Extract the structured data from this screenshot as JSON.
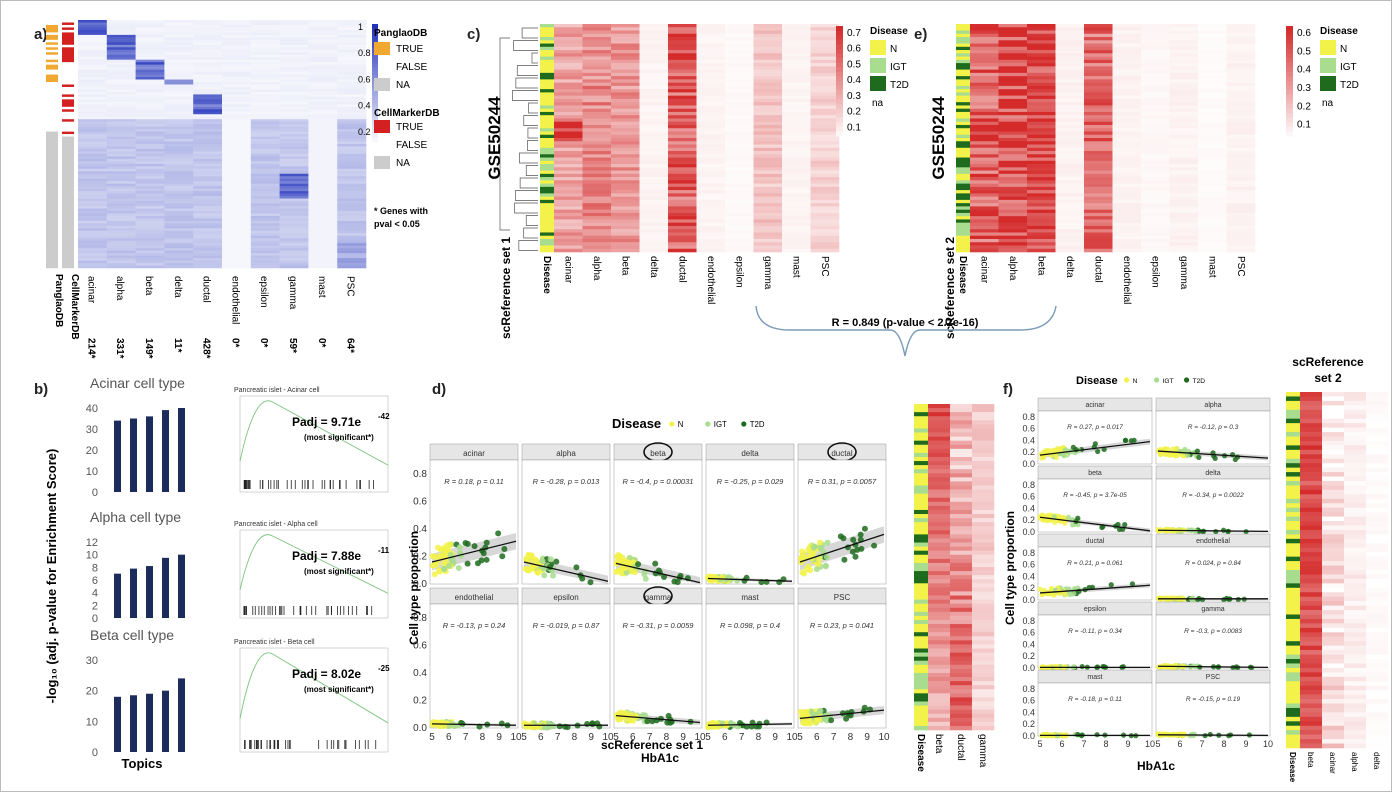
{
  "panels": {
    "a": {
      "label": "a)",
      "row_annots": [
        "PanglaoDB",
        "CellMarkerDB"
      ],
      "cell_types": [
        "acinar",
        "alpha",
        "beta",
        "delta",
        "ductal",
        "endothelial",
        "epsilon",
        "gamma",
        "mast",
        "PSC"
      ],
      "counts": [
        "214*",
        "331*",
        "149*",
        "11*",
        "428*",
        "0*",
        "0*",
        "59*",
        "0*",
        "64*"
      ],
      "colorbar_ticks": [
        "1",
        "0.8",
        "0.6",
        "0.4",
        "0.2"
      ],
      "legend_panglao_title": "PanglaoDB",
      "legend_cellmarker_title": "CellMarkerDB",
      "legend_true": "TRUE",
      "legend_false": "FALSE",
      "legend_na": "NA",
      "note_line1": "* Genes with",
      "note_line2": "pval < 0.05",
      "colors": {
        "heat": "#2233bb",
        "panglao": "#f0a830",
        "cellmarker": "#d42020",
        "na": "#cccccc"
      }
    },
    "b": {
      "label": "b)",
      "ylabel": "-log₁₀ (adj. p-value for Enrichment Score)",
      "xlabel": "Topics",
      "bar_color": "#1a2b5c",
      "groups": [
        {
          "title": "Acinar cell type",
          "ticks": [
            "40",
            "30",
            "20",
            "10",
            "0"
          ],
          "values": [
            34,
            35,
            36,
            39,
            40
          ],
          "ymax": 40,
          "gsea_title": "Pancreatic islet - Acinar cell",
          "padj_base": "Padj = 9.71e",
          "padj_exp": "-42",
          "note": "(most significant*)"
        },
        {
          "title": "Alpha cell type",
          "ticks": [
            "12",
            "10",
            "8",
            "6",
            "4",
            "2",
            "0"
          ],
          "values": [
            7,
            7.8,
            8.2,
            9.5,
            10
          ],
          "ymax": 12,
          "gsea_title": "Pancreatic islet - Alpha cell",
          "padj_base": "Padj = 7.88e",
          "padj_exp": "-11",
          "note": "(most significant*)"
        },
        {
          "title": "Beta cell type",
          "ticks": [
            "30",
            "20",
            "10",
            "0"
          ],
          "values": [
            18,
            18.5,
            19,
            20,
            24
          ],
          "ymax": 30,
          "gsea_title": "Pancreatic islet - Beta cell",
          "padj_base": "Padj = 8.02e",
          "padj_exp": "-25",
          "note": "(most significant*)"
        }
      ]
    },
    "c": {
      "label": "c)",
      "dataset": "GSE50244",
      "ref": "scReference set 1",
      "cols": [
        "Disease",
        "acinar",
        "alpha",
        "beta",
        "delta",
        "ductal",
        "endothelial",
        "epsilon",
        "gamma",
        "mast",
        "PSC"
      ],
      "colorbar_ticks": [
        "0.7",
        "0.6",
        "0.5",
        "0.4",
        "0.3",
        "0.2",
        "0.1"
      ],
      "legend_title": "Disease",
      "legend": [
        "N",
        "IGT",
        "T2D",
        "na"
      ],
      "col_intensity": [
        0.4,
        0.5,
        0.45,
        0.05,
        0.7,
        0.05,
        0.03,
        0.25,
        0.05,
        0.2
      ],
      "col_max": 0.75
    },
    "e": {
      "label": "e)",
      "dataset": "GSE50244",
      "ref": "scReference set 2",
      "cols": [
        "Disease",
        "acinar",
        "alpha",
        "beta",
        "delta",
        "ductal",
        "endothelial",
        "epsilon",
        "gamma",
        "mast",
        "PSC"
      ],
      "colorbar_ticks": [
        "0.6",
        "0.5",
        "0.4",
        "0.3",
        "0.2",
        "0.1"
      ],
      "legend_title": "Disease",
      "legend": [
        "N",
        "IGT",
        "T2D",
        "na"
      ],
      "col_intensity": [
        0.6,
        0.7,
        0.75,
        0.05,
        0.55,
        0.05,
        0.03,
        0.05,
        0.02,
        0.05
      ],
      "col_max": 0.65
    },
    "correlation": "R = 0.849  (p-value < 2.2e-16)",
    "d": {
      "label": "d)",
      "legend_title": "Disease",
      "legend": [
        "N",
        "IGT",
        "T2D"
      ],
      "ylabel": "Cell type proportion",
      "xlabel": "HbA1c",
      "yticks": [
        "0.8",
        "0.6",
        "0.4",
        "0.2",
        "0.0"
      ],
      "xticks": [
        "5",
        "6",
        "7",
        "8",
        "9",
        "10"
      ],
      "caption": "scReference set 1",
      "facets": [
        {
          "name": "acinar",
          "stat": "R = 0.18, p = 0.11",
          "circled": false,
          "y0": 0.16,
          "y1": 0.31,
          "band": 0.06
        },
        {
          "name": "alpha",
          "stat": "R = -0.28, p = 0.013",
          "circled": false,
          "y0": 0.16,
          "y1": 0.02,
          "band": 0.04
        },
        {
          "name": "beta",
          "stat": "R = -0.4, p = 0.00031",
          "circled": true,
          "y0": 0.15,
          "y1": 0.01,
          "band": 0.04
        },
        {
          "name": "delta",
          "stat": "R = -0.25, p = 0.029",
          "circled": false,
          "y0": 0.04,
          "y1": 0.02,
          "band": 0.01
        },
        {
          "name": "ductal",
          "stat": "R = 0.31, p = 0.0057",
          "circled": true,
          "y0": 0.16,
          "y1": 0.36,
          "band": 0.06
        },
        {
          "name": "endothelial",
          "stat": "R = -0.13, p = 0.24",
          "circled": false,
          "y0": 0.03,
          "y1": 0.02,
          "band": 0.01
        },
        {
          "name": "epsilon",
          "stat": "R = -0.019, p = 0.87",
          "circled": false,
          "y0": 0.02,
          "y1": 0.02,
          "band": 0.01
        },
        {
          "name": "gamma",
          "stat": "R = -0.31, p = 0.0059",
          "circled": true,
          "y0": 0.09,
          "y1": 0.04,
          "band": 0.02
        },
        {
          "name": "mast",
          "stat": "R = 0.098, p = 0.4",
          "circled": false,
          "y0": 0.02,
          "y1": 0.03,
          "band": 0.01
        },
        {
          "name": "PSC",
          "stat": "R = 0.23, p = 0.041",
          "circled": false,
          "y0": 0.07,
          "y1": 0.13,
          "band": 0.03
        }
      ],
      "strip_ref": "scReference set 1",
      "strip_cols": [
        "Disease",
        "beta",
        "ductal",
        "gamma"
      ]
    },
    "f": {
      "label": "f)",
      "legend_title": "Disease",
      "legend": [
        "N",
        "IGT",
        "T2D"
      ],
      "ylabel": "Cell type proportion",
      "xlabel": "HbA1c",
      "yticks": [
        "0.8",
        "0.6",
        "0.4",
        "0.2",
        "0.0"
      ],
      "xticks": [
        "5",
        "6",
        "7",
        "8",
        "9",
        "10"
      ],
      "facets": [
        {
          "name": "acinar",
          "stat": "R = 0.27, p = 0.017",
          "y0": 0.15,
          "y1": 0.38,
          "band": 0.05
        },
        {
          "name": "alpha",
          "stat": "R = -0.12, p = 0.3",
          "y0": 0.22,
          "y1": 0.1,
          "band": 0.04
        },
        {
          "name": "beta",
          "stat": "R = -0.45, p = 3.7e-05",
          "y0": 0.25,
          "y1": 0.02,
          "band": 0.04
        },
        {
          "name": "delta",
          "stat": "R = -0.34, p = 0.0022",
          "y0": 0.03,
          "y1": 0.01,
          "band": 0.01
        },
        {
          "name": "ductal",
          "stat": "R = 0.21, p = 0.061",
          "y0": 0.12,
          "y1": 0.25,
          "band": 0.04
        },
        {
          "name": "endothelial",
          "stat": "R = 0.024, p = 0.84",
          "y0": 0.02,
          "y1": 0.02,
          "band": 0.01
        },
        {
          "name": "epsilon",
          "stat": "R = -0.11, p = 0.34",
          "y0": 0.01,
          "y1": 0.01,
          "band": 0.01
        },
        {
          "name": "gamma",
          "stat": "R = -0.3, p = 0.0083",
          "y0": 0.03,
          "y1": 0.01,
          "band": 0.01
        },
        {
          "name": "mast",
          "stat": "R = -0.18, p = 0.11",
          "y0": 0.01,
          "y1": 0.01,
          "band": 0.01
        },
        {
          "name": "PSC",
          "stat": "R = -0.15, p = 0.19",
          "y0": 0.02,
          "y1": 0.01,
          "band": 0.01
        }
      ],
      "strip_ref_line1": "scReference",
      "strip_ref_line2": "set 2",
      "strip_cols": [
        "Disease",
        "beta",
        "acinar",
        "alpha",
        "delta"
      ]
    }
  },
  "colors": {
    "N": "#f2f24a",
    "IGT": "#a8dc8e",
    "T2D": "#1e6b1e",
    "heat_red": "#d42a2a",
    "na": "#dddddd"
  }
}
